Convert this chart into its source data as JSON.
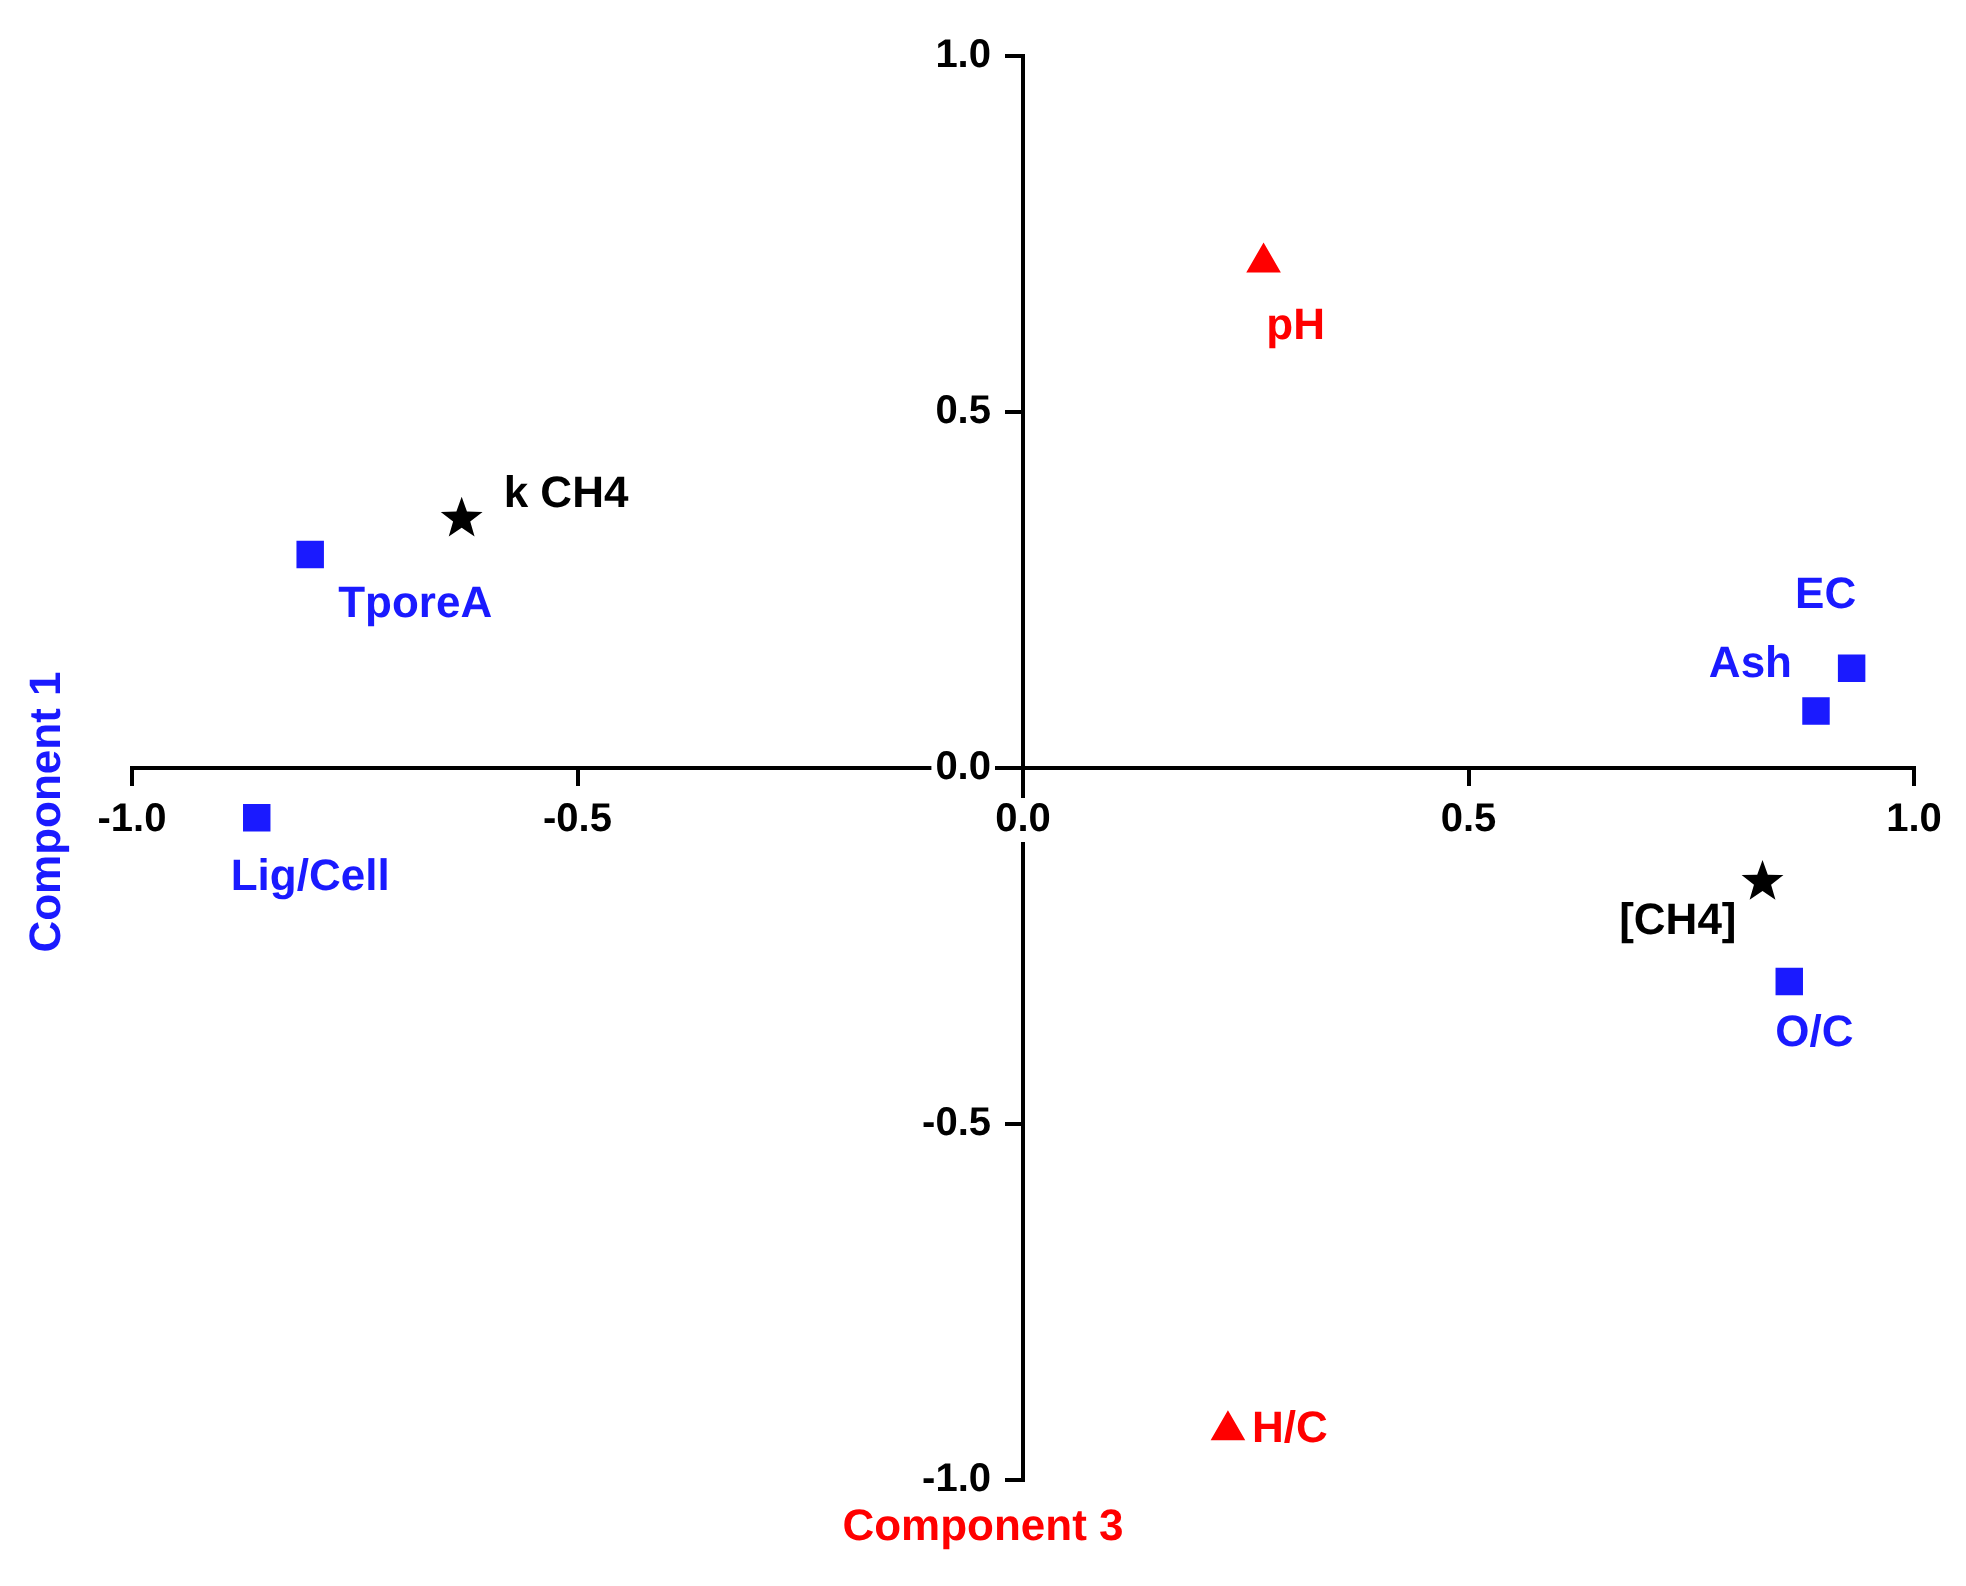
{
  "chart_data": {
    "type": "scatter",
    "xlabel": "Component 3",
    "ylabel": "Component 1",
    "xlim": [
      -1,
      1
    ],
    "ylim": [
      -1,
      1
    ],
    "xticks": [
      {
        "value": -1,
        "label": "-1.0"
      },
      {
        "value": -0.5,
        "label": "-0.5"
      },
      {
        "value": 0,
        "label": "0.0"
      },
      {
        "value": 0.5,
        "label": "0.5"
      },
      {
        "value": 1,
        "label": "1.0"
      }
    ],
    "yticks": [
      {
        "value": -1,
        "label": "-1.0"
      },
      {
        "value": -0.5,
        "label": "-0.5"
      },
      {
        "value": 0,
        "label": "0.0"
      },
      {
        "value": 0.5,
        "label": "0.5"
      },
      {
        "value": 1,
        "label": "1.0"
      }
    ],
    "grid": false,
    "legend": false,
    "series": [
      {
        "name": "TporeA",
        "color": "#1a1aff",
        "marker": "square",
        "x": [
          -0.8
        ],
        "values": [
          0.3
        ]
      },
      {
        "name": "Lig/Cell",
        "color": "#1a1aff",
        "marker": "square",
        "x": [
          -0.86
        ],
        "values": [
          -0.07
        ]
      },
      {
        "name": "Ash",
        "color": "#1a1aff",
        "marker": "square",
        "x": [
          0.89
        ],
        "values": [
          0.08
        ]
      },
      {
        "name": "EC",
        "color": "#1a1aff",
        "marker": "square",
        "x": [
          0.93
        ],
        "values": [
          0.14
        ]
      },
      {
        "name": "O/C",
        "color": "#1a1aff",
        "marker": "square",
        "x": [
          0.86
        ],
        "values": [
          -0.3
        ]
      },
      {
        "name": "pH",
        "color": "#ff0000",
        "marker": "triangle",
        "x": [
          0.27
        ],
        "values": [
          0.71
        ]
      },
      {
        "name": "H/C",
        "color": "#ff0000",
        "marker": "triangle",
        "x": [
          0.23
        ],
        "values": [
          -0.93
        ]
      },
      {
        "name": "k CH4",
        "color": "#000000",
        "marker": "star",
        "x": [
          -0.63
        ],
        "values": [
          0.35
        ]
      },
      {
        "name": "[CH4]",
        "color": "#000000",
        "marker": "star",
        "x": [
          0.83
        ],
        "values": [
          -0.16
        ]
      }
    ]
  }
}
